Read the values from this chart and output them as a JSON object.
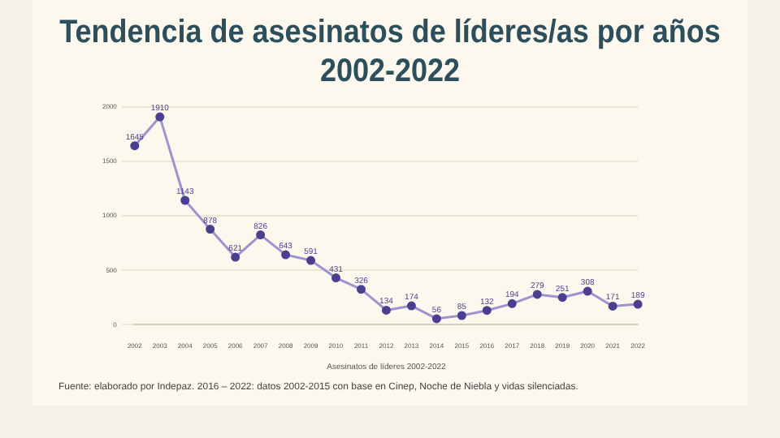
{
  "chart_data": {
    "type": "line",
    "title": "Tendencia de asesinatos de líderes/as por años 2002-2022",
    "xlabel": "Asesinatos de líderes 2002-2022",
    "categories": [
      "2002",
      "2003",
      "2004",
      "2005",
      "2006",
      "2007",
      "2008",
      "2009",
      "2010",
      "2011",
      "2012",
      "2013",
      "2014",
      "2015",
      "2016",
      "2017",
      "2018",
      "2019",
      "2020",
      "2021",
      "2022"
    ],
    "series": [
      {
        "color": "#9d93cf",
        "values": [
          1645,
          1910,
          1143,
          878,
          621,
          826,
          643,
          591,
          431,
          326,
          134,
          174,
          56,
          85,
          132,
          194,
          279,
          251,
          308,
          171,
          189
        ]
      }
    ],
    "ylim": [
      0,
      2000
    ],
    "yticks": [
      0,
      500,
      1000,
      1500,
      2000
    ],
    "grid": "y",
    "marker": "circle",
    "legend": false,
    "data_labels": true,
    "annotations": [
      "Fuente: elaborado por Indepaz. 2016 – 2022: datos 2002-2015 con base en Cinep, Noche de Niebla y vidas silenciadas."
    ]
  }
}
